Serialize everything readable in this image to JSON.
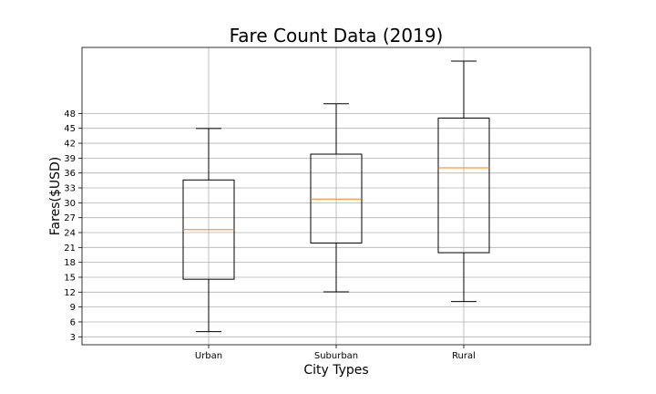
{
  "chart_data": {
    "type": "box",
    "title": "Fare Count Data (2019)",
    "xlabel": "City Types",
    "ylabel": "Fares($USD)",
    "categories": [
      "Urban",
      "Suburban",
      "Rural"
    ],
    "boxes": [
      {
        "name": "Urban",
        "whislo": 4.05,
        "q1": 14.6,
        "med": 24.6,
        "q3": 34.6,
        "whishi": 44.97
      },
      {
        "name": "Suburban",
        "whislo": 12.05,
        "q1": 21.9,
        "med": 30.75,
        "q3": 39.8,
        "whishi": 49.96
      },
      {
        "name": "Rural",
        "whislo": 10.11,
        "q1": 19.95,
        "med": 37.05,
        "q3": 47.07,
        "whishi": 58.55
      }
    ],
    "yticks": [
      3,
      6,
      9,
      12,
      15,
      18,
      21,
      24,
      27,
      30,
      33,
      36,
      39,
      42,
      45,
      48
    ],
    "ylim": [
      1.4,
      61.3
    ],
    "grid": true,
    "colors": {
      "box": "#000000",
      "median": "#ff7f0e",
      "grid": "#b0b0b0"
    }
  }
}
